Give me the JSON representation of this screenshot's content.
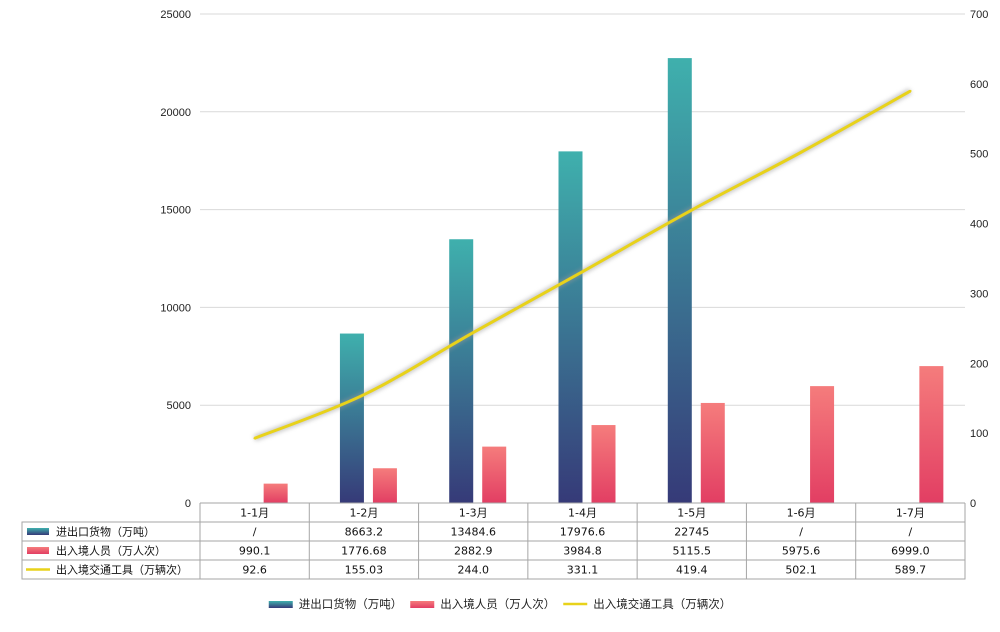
{
  "chart_data": {
    "type": "bar",
    "categories": [
      "1-1月",
      "1-2月",
      "1-3月",
      "1-4月",
      "1-5月",
      "1-6月",
      "1-7月"
    ],
    "series": [
      {
        "name": "进出口货物（万吨）",
        "kind": "bar",
        "axis": "left",
        "color_top": "#3fb0ad",
        "color_bottom": "#363a78",
        "values": [
          null,
          8663.2,
          13484.6,
          17976.6,
          22745,
          null,
          null
        ],
        "labels": [
          "/",
          "8663.2",
          "13484.6",
          "17976.6",
          "22745",
          "/",
          "/"
        ]
      },
      {
        "name": "出入境人员（万人次）",
        "kind": "bar",
        "axis": "left",
        "color_top": "#f57c7c",
        "color_bottom": "#e23e63",
        "values": [
          990.1,
          1776.68,
          2882.9,
          3984.8,
          5115.5,
          5975.6,
          6999.0
        ],
        "labels": [
          "990.1",
          "1776.68",
          "2882.9",
          "3984.8",
          "5115.5",
          "5975.6",
          "6999.0"
        ]
      },
      {
        "name": "出入境交通工具（万辆次）",
        "kind": "line",
        "axis": "right",
        "color": "#e8d21a",
        "values": [
          92.6,
          155.03,
          244.0,
          331.1,
          419.4,
          502.1,
          589.7
        ],
        "labels": [
          "92.6",
          "155.03",
          "244.0",
          "331.1",
          "419.4",
          "502.1",
          "589.7"
        ]
      }
    ],
    "y_left": {
      "min": 0,
      "max": 25000,
      "ticks": [
        0,
        5000,
        10000,
        15000,
        20000,
        25000
      ]
    },
    "y_right": {
      "min": 0,
      "max": 700,
      "ticks": [
        0,
        100,
        200,
        300,
        400,
        500,
        600,
        700
      ]
    },
    "grid": true,
    "legend_position": "bottom-center",
    "data_table": true
  }
}
